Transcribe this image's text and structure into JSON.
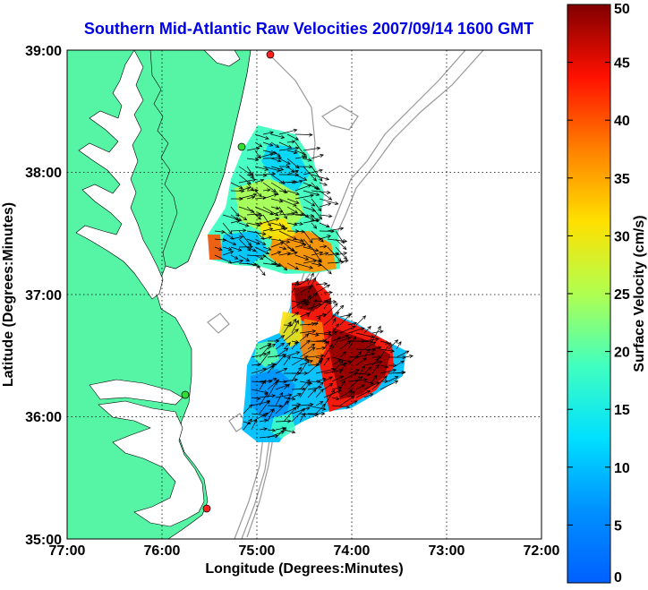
{
  "title": "Southern Mid-Atlantic Raw Velocities 2007/09/14 1600 GMT",
  "x_axis": {
    "label": "Longitude (Degrees:Minutes)",
    "ticks": [
      "77:00",
      "76:00",
      "75:00",
      "74:00",
      "73:00",
      "72:00"
    ]
  },
  "y_axis": {
    "label": "Latitude (Degrees:Minutes)",
    "ticks": [
      "39:00",
      "38:00",
      "37:00",
      "36:00",
      "35:00"
    ]
  },
  "colorbar": {
    "label": "Surface Velocity (cm/s)",
    "ticks": [
      "0",
      "5",
      "10",
      "15",
      "20",
      "25",
      "30",
      "35",
      "40",
      "45",
      "50"
    ],
    "colormap": "jet",
    "range": [
      0,
      50
    ]
  },
  "colors": {
    "land": "#55f5a5",
    "title": "#0000e6",
    "bathymetry": "#999999",
    "station_red": "#ff2020",
    "station_green": "#33dd33"
  },
  "chart_data": {
    "type": "heatmap",
    "title": "Southern Mid-Atlantic Raw Velocities 2007/09/14 1600 GMT",
    "xlabel": "Longitude (Degrees:Minutes)",
    "ylabel": "Latitude (Degrees:Minutes)",
    "xlim": [
      -77.0,
      -72.0
    ],
    "ylim": [
      35.0,
      39.0
    ],
    "grid": "dotted",
    "colorbar": {
      "label": "Surface Velocity (cm/s)",
      "range": [
        0,
        50
      ]
    },
    "stations": [
      {
        "lon": -75.12,
        "lat": 38.98,
        "color": "red"
      },
      {
        "lon": -75.45,
        "lat": 38.22,
        "color": "green"
      },
      {
        "lon": -75.7,
        "lat": 36.19,
        "color": "green"
      },
      {
        "lon": -75.52,
        "lat": 35.27,
        "color": "red"
      }
    ]
  }
}
